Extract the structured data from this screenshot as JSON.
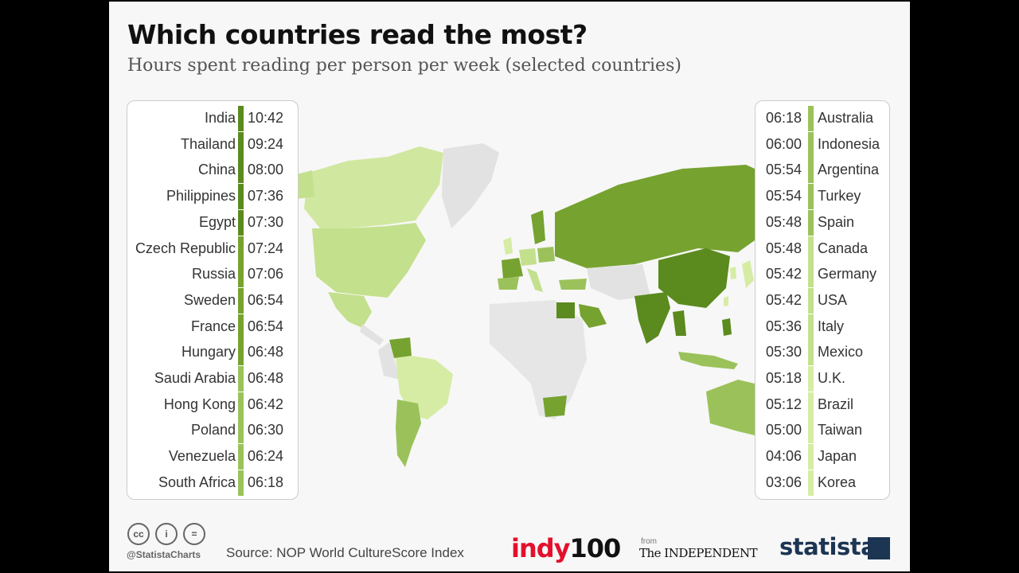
{
  "title": "Which countries read the most?",
  "subtitle": "Hours spent reading per person per week (selected countries)",
  "colors": {
    "tier1": "#5b8a1e",
    "tier2": "#76a22f",
    "tier3": "#9bc25a",
    "tier4": "#c3e08d",
    "tier5": "#d6eca5",
    "none": "#e2e2e2"
  },
  "chart_data": {
    "type": "table",
    "title": "Which countries read the most?",
    "subtitle": "Hours spent reading per person per week (selected countries)",
    "rows_left": [
      {
        "country": "India",
        "time": "10:42",
        "tier": 1
      },
      {
        "country": "Thailand",
        "time": "09:24",
        "tier": 1
      },
      {
        "country": "China",
        "time": "08:00",
        "tier": 1
      },
      {
        "country": "Philippines",
        "time": "07:36",
        "tier": 1
      },
      {
        "country": "Egypt",
        "time": "07:30",
        "tier": 1
      },
      {
        "country": "Czech Republic",
        "time": "07:24",
        "tier": 2
      },
      {
        "country": "Russia",
        "time": "07:06",
        "tier": 2
      },
      {
        "country": "Sweden",
        "time": "06:54",
        "tier": 2
      },
      {
        "country": "France",
        "time": "06:54",
        "tier": 2
      },
      {
        "country": "Hungary",
        "time": "06:48",
        "tier": 2
      },
      {
        "country": "Saudi Arabia",
        "time": "06:48",
        "tier": 3
      },
      {
        "country": "Hong Kong",
        "time": "06:42",
        "tier": 3
      },
      {
        "country": "Poland",
        "time": "06:30",
        "tier": 3
      },
      {
        "country": "Venezuela",
        "time": "06:24",
        "tier": 3
      },
      {
        "country": "South Africa",
        "time": "06:18",
        "tier": 3
      }
    ],
    "rows_right": [
      {
        "country": "Australia",
        "time": "06:18",
        "tier": 3
      },
      {
        "country": "Indonesia",
        "time": "06:00",
        "tier": 3
      },
      {
        "country": "Argentina",
        "time": "05:54",
        "tier": 3
      },
      {
        "country": "Turkey",
        "time": "05:54",
        "tier": 3
      },
      {
        "country": "Spain",
        "time": "05:48",
        "tier": 3
      },
      {
        "country": "Canada",
        "time": "05:48",
        "tier": 4
      },
      {
        "country": "Germany",
        "time": "05:42",
        "tier": 4
      },
      {
        "country": "USA",
        "time": "05:42",
        "tier": 4
      },
      {
        "country": "Italy",
        "time": "05:36",
        "tier": 4
      },
      {
        "country": "Mexico",
        "time": "05:30",
        "tier": 4
      },
      {
        "country": "U.K.",
        "time": "05:18",
        "tier": 5
      },
      {
        "country": "Brazil",
        "time": "05:12",
        "tier": 5
      },
      {
        "country": "Taiwan",
        "time": "05:00",
        "tier": 5
      },
      {
        "country": "Japan",
        "time": "04:06",
        "tier": 5
      },
      {
        "country": "Korea",
        "time": "03:06",
        "tier": 5
      }
    ]
  },
  "footer": {
    "handle": "@StatistaCharts",
    "source": "Source: NOP World CultureScore Index",
    "indy_part1": "indy",
    "indy_part2": "100",
    "from": "from",
    "independent": "The INDEPENDENT",
    "statista": "statista",
    "cc_icons": [
      "cc-icon",
      "attribution-icon",
      "no-derivatives-icon"
    ]
  }
}
